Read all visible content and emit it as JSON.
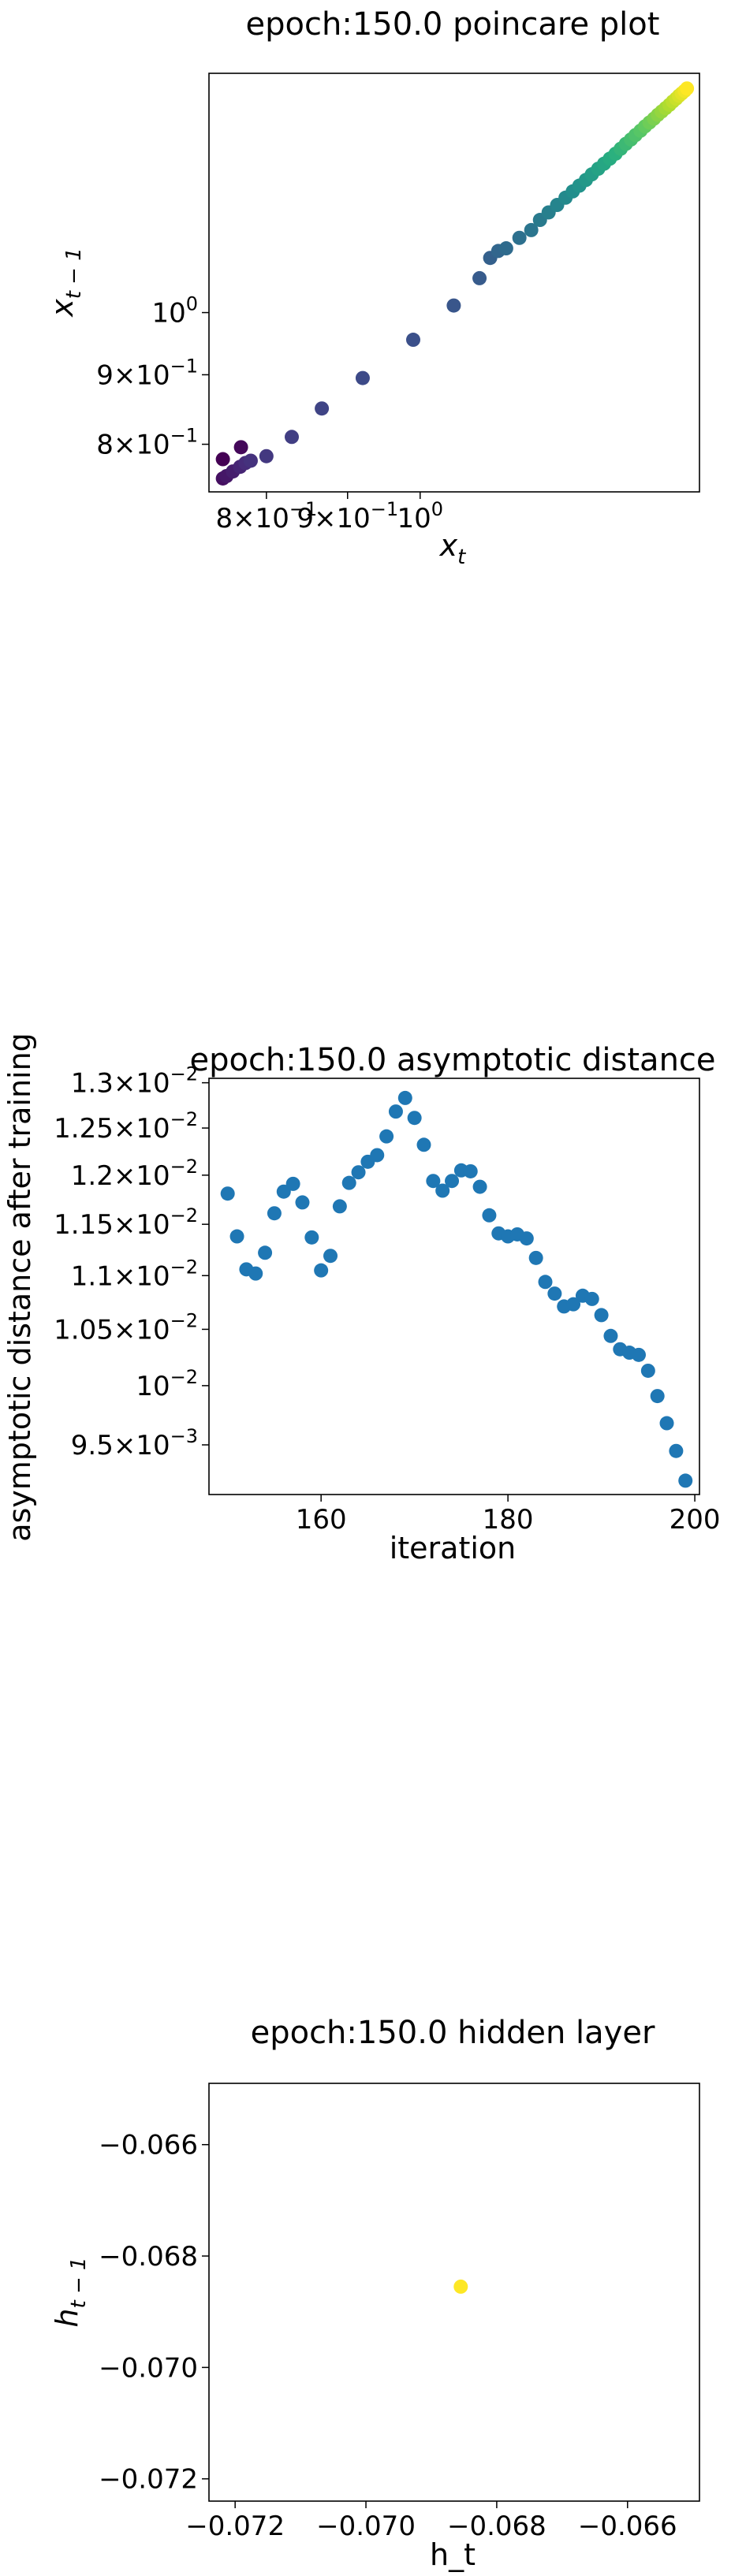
{
  "colors": {
    "viridis": [
      "#440154",
      "#472d7b",
      "#3b528b",
      "#2c728e",
      "#21918c",
      "#28ae80",
      "#5ec962",
      "#addc30",
      "#fde725"
    ],
    "asym_point": "#1f77b4",
    "hidden_point": "#fde725"
  },
  "chart_data": [
    {
      "type": "scatter",
      "title": "epoch:150.0 poincare plot",
      "xlabel": "x_t",
      "ylabel": "x_{t-1}",
      "xscale": "log",
      "yscale": "log",
      "xlim": [
        0.736,
        1.5
      ],
      "ylim": [
        0.738,
        1.5
      ],
      "x_ticks": [
        {
          "value": 0.8,
          "base": "8×10",
          "exp": "−1"
        },
        {
          "value": 0.9,
          "base": "9×10",
          "exp": "−1"
        },
        {
          "value": 1.0,
          "base": "10",
          "exp": "0"
        }
      ],
      "y_ticks": [
        {
          "value": 0.8,
          "base": "8×10",
          "exp": "−1"
        },
        {
          "value": 0.9,
          "base": "9×10",
          "exp": "−1"
        },
        {
          "value": 1.0,
          "base": "10",
          "exp": "0"
        }
      ],
      "colormap": "viridis",
      "grid": false,
      "points": [
        [
          0.751,
          0.78
        ],
        [
          0.771,
          0.796
        ],
        [
          0.751,
          0.755
        ],
        [
          0.755,
          0.758
        ],
        [
          0.762,
          0.764
        ],
        [
          0.77,
          0.77
        ],
        [
          0.776,
          0.775
        ],
        [
          0.782,
          0.778
        ],
        [
          0.8,
          0.784
        ],
        [
          0.83,
          0.81
        ],
        [
          0.867,
          0.85
        ],
        [
          0.92,
          0.895
        ],
        [
          0.99,
          0.955
        ],
        [
          1.05,
          1.012
        ],
        [
          1.09,
          1.06
        ],
        [
          1.107,
          1.097
        ],
        [
          1.12,
          1.11
        ],
        [
          1.133,
          1.115
        ],
        [
          1.155,
          1.135
        ],
        [
          1.175,
          1.15
        ],
        [
          1.19,
          1.17
        ],
        [
          1.205,
          1.185
        ],
        [
          1.22,
          1.2
        ],
        [
          1.235,
          1.215
        ],
        [
          1.248,
          1.228
        ],
        [
          1.26,
          1.24
        ],
        [
          1.272,
          1.252
        ],
        [
          1.283,
          1.264
        ],
        [
          1.295,
          1.276
        ],
        [
          1.306,
          1.287
        ],
        [
          1.317,
          1.298
        ],
        [
          1.328,
          1.309
        ],
        [
          1.338,
          1.32
        ],
        [
          1.348,
          1.331
        ],
        [
          1.358,
          1.341
        ],
        [
          1.367,
          1.351
        ],
        [
          1.377,
          1.361
        ],
        [
          1.386,
          1.371
        ],
        [
          1.395,
          1.38
        ],
        [
          1.404,
          1.389
        ],
        [
          1.412,
          1.398
        ],
        [
          1.42,
          1.406
        ],
        [
          1.428,
          1.414
        ],
        [
          1.436,
          1.422
        ],
        [
          1.443,
          1.43
        ],
        [
          1.45,
          1.437
        ],
        [
          1.456,
          1.444
        ],
        [
          1.462,
          1.45
        ],
        [
          1.468,
          1.456
        ],
        [
          1.473,
          1.462
        ]
      ]
    },
    {
      "type": "scatter",
      "title": "epoch:150.0 asymptotic distance",
      "xlabel": "iteration",
      "ylabel": "asymptotic distance after training",
      "yscale": "log",
      "xlim": [
        148,
        200.5
      ],
      "ylim": [
        0.0091,
        0.01305
      ],
      "x_ticks": [
        {
          "value": 160,
          "label": "160"
        },
        {
          "value": 180,
          "label": "180"
        },
        {
          "value": 200,
          "label": "200"
        }
      ],
      "y_ticks": [
        {
          "value": 0.0095,
          "base": "9.5×10",
          "exp": "−3"
        },
        {
          "value": 0.01,
          "base": "10",
          "exp": "−2"
        },
        {
          "value": 0.0105,
          "base": "1.05×10",
          "exp": "−2"
        },
        {
          "value": 0.011,
          "base": "1.1×10",
          "exp": "−2"
        },
        {
          "value": 0.0115,
          "base": "1.15×10",
          "exp": "−2"
        },
        {
          "value": 0.012,
          "base": "1.2×10",
          "exp": "−2"
        },
        {
          "value": 0.0125,
          "base": "1.25×10",
          "exp": "−2"
        },
        {
          "value": 0.013,
          "base": "1.3×10",
          "exp": "−2"
        }
      ],
      "grid": false,
      "x": [
        150,
        151,
        152,
        153,
        154,
        155,
        156,
        157,
        158,
        159,
        160,
        161,
        162,
        163,
        164,
        165,
        166,
        167,
        168,
        169,
        170,
        171,
        172,
        173,
        174,
        175,
        176,
        177,
        178,
        179,
        180,
        181,
        182,
        183,
        184,
        185,
        186,
        187,
        188,
        189,
        190,
        191,
        192,
        193,
        194,
        195,
        196,
        197,
        198,
        199
      ],
      "y": [
        0.01181,
        0.01138,
        0.01106,
        0.01102,
        0.01122,
        0.01161,
        0.01183,
        0.01191,
        0.01172,
        0.01137,
        0.01105,
        0.01119,
        0.01168,
        0.01192,
        0.01203,
        0.01214,
        0.01221,
        0.01241,
        0.01268,
        0.01283,
        0.01261,
        0.01232,
        0.01194,
        0.01184,
        0.01194,
        0.01205,
        0.01204,
        0.01188,
        0.01159,
        0.01141,
        0.01138,
        0.0114,
        0.01136,
        0.01117,
        0.01094,
        0.01083,
        0.01071,
        0.01073,
        0.01081,
        0.01078,
        0.01063,
        0.01044,
        0.01032,
        0.01029,
        0.01027,
        0.01013,
        0.00991,
        0.00968,
        0.00945,
        0.00921
      ]
    },
    {
      "type": "scatter",
      "title": "epoch:150.0 hidden layer",
      "xlabel": "h_t",
      "ylabel": "h_{t-1}",
      "xlim": [
        -0.0724,
        -0.0649
      ],
      "ylim": [
        -0.0724,
        -0.0649
      ],
      "x_ticks": [
        {
          "value": -0.072,
          "label": "−0.072"
        },
        {
          "value": -0.07,
          "label": "−0.070"
        },
        {
          "value": -0.068,
          "label": "−0.068"
        },
        {
          "value": -0.066,
          "label": "−0.066"
        }
      ],
      "y_ticks": [
        {
          "value": -0.072,
          "label": "−0.072"
        },
        {
          "value": -0.07,
          "label": "−0.070"
        },
        {
          "value": -0.068,
          "label": "−0.068"
        },
        {
          "value": -0.066,
          "label": "−0.066"
        }
      ],
      "grid": false,
      "points": [
        [
          -0.06855,
          -0.06855
        ]
      ]
    }
  ]
}
